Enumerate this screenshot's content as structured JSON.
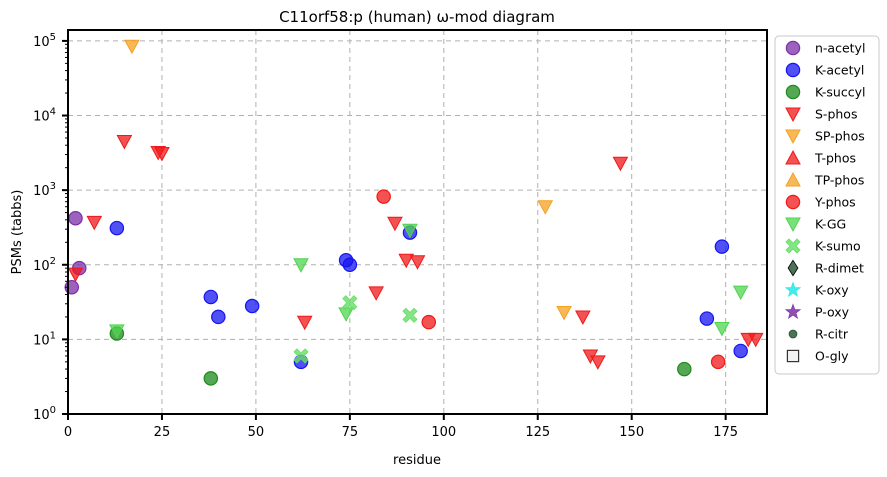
{
  "chart_data": {
    "type": "scatter",
    "title": "C11orf58:p (human) ω-mod diagram",
    "xlabel": "residue",
    "ylabel": "PSMs (tabbs)",
    "xlim": [
      0,
      186
    ],
    "ylim": [
      1,
      140000
    ],
    "yscale": "log",
    "grid": true,
    "legend_position": "outside-right",
    "x_ticks": [
      0,
      25,
      50,
      75,
      100,
      125,
      150,
      175
    ],
    "y_ticks": [
      {
        "value": 1,
        "base": "10",
        "exp": "0"
      },
      {
        "value": 10,
        "base": "10",
        "exp": "1"
      },
      {
        "value": 100,
        "base": "10",
        "exp": "2"
      },
      {
        "value": 1000,
        "base": "10",
        "exp": "3"
      },
      {
        "value": 10000,
        "base": "10",
        "exp": "4"
      },
      {
        "value": 100000,
        "base": "10",
        "exp": "5"
      }
    ],
    "series": [
      {
        "name": "n-acetyl",
        "marker": "circle",
        "color": "#7b2fa8",
        "points": [
          [
            1,
            50
          ],
          [
            2,
            420
          ],
          [
            3,
            90
          ]
        ]
      },
      {
        "name": "K-acetyl",
        "marker": "circle",
        "color": "#1515f0",
        "points": [
          [
            13,
            310
          ],
          [
            38,
            37
          ],
          [
            40,
            20
          ],
          [
            49,
            28
          ],
          [
            62,
            5
          ],
          [
            74,
            115
          ],
          [
            75,
            100
          ],
          [
            91,
            270
          ],
          [
            170,
            19
          ],
          [
            174,
            175
          ],
          [
            179,
            7
          ]
        ]
      },
      {
        "name": "K-succyl",
        "marker": "circle",
        "color": "#1c8a1c",
        "points": [
          [
            13,
            12
          ],
          [
            38,
            3
          ],
          [
            164,
            4
          ]
        ]
      },
      {
        "name": "S-phos",
        "marker": "triangle-down",
        "color": "#f01818",
        "points": [
          [
            2,
            75
          ],
          [
            7,
            370
          ],
          [
            15,
            4500
          ],
          [
            24,
            3200
          ],
          [
            25,
            3100
          ],
          [
            63,
            17
          ],
          [
            82,
            42
          ],
          [
            87,
            360
          ],
          [
            90,
            115
          ],
          [
            93,
            110
          ],
          [
            137,
            20
          ],
          [
            139,
            6
          ],
          [
            141,
            5
          ],
          [
            147,
            2300
          ],
          [
            181,
            10
          ],
          [
            183,
            10
          ]
        ]
      },
      {
        "name": "SP-phos",
        "marker": "triangle-down",
        "color": "#f5a020",
        "points": [
          [
            17,
            85000
          ],
          [
            127,
            600
          ],
          [
            132,
            23
          ]
        ]
      },
      {
        "name": "T-phos",
        "marker": "triangle-up",
        "color": "#f01818",
        "points": []
      },
      {
        "name": "TP-phos",
        "marker": "triangle-up",
        "color": "#f5a020",
        "points": []
      },
      {
        "name": "Y-phos",
        "marker": "circle",
        "color": "#f01818",
        "points": [
          [
            84,
            820
          ],
          [
            96,
            17
          ],
          [
            173,
            5
          ]
        ]
      },
      {
        "name": "K-GG",
        "marker": "triangle-down",
        "color": "#4fd44f",
        "points": [
          [
            13,
            13
          ],
          [
            62,
            100
          ],
          [
            74,
            22
          ],
          [
            91,
            290
          ],
          [
            174,
            14
          ],
          [
            179,
            43
          ]
        ]
      },
      {
        "name": "K-sumo",
        "marker": "x",
        "color": "#66dd66",
        "points": [
          [
            62,
            6
          ],
          [
            75,
            31
          ],
          [
            91,
            21
          ]
        ]
      },
      {
        "name": "R-dimet",
        "marker": "diamond",
        "color": "#2d5a3a",
        "points": []
      },
      {
        "name": "K-oxy",
        "marker": "star",
        "color": "#22e8e8",
        "points": []
      },
      {
        "name": "P-oxy",
        "marker": "star",
        "color": "#7b2fa8",
        "points": []
      },
      {
        "name": "R-citr",
        "marker": "small-circle",
        "color": "#2d5a3a",
        "points": []
      },
      {
        "name": "O-gly",
        "marker": "square-open",
        "color": "#333333",
        "points": []
      }
    ]
  }
}
